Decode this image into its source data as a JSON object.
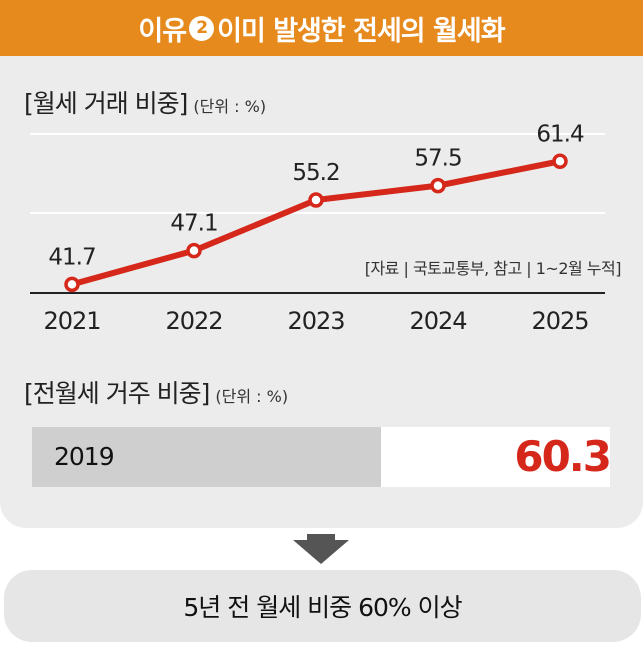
{
  "header": {
    "title_pre": "이유",
    "title_num": "2",
    "title_post": "이미 발생한 전세의 월세화"
  },
  "section1": {
    "title": "[월세 거래 비중]",
    "unit": "(단위 : %)"
  },
  "source": "[자료 | 국토교통부, 참고 | 1~2월 누적]",
  "section2": {
    "title": "[전월세 거주 비중]",
    "unit": "(단위 : %)"
  },
  "bar": {
    "label": "2019",
    "value_label": "60.3",
    "value": 60.3
  },
  "conclusion": "5년 전 월세 비중 60% 이상",
  "colors": {
    "accent": "#e68a1e",
    "line": "#d5281b",
    "panel": "#ececec"
  },
  "chart_data": {
    "type": "line",
    "categories": [
      "2021",
      "2022",
      "2023",
      "2024",
      "2025"
    ],
    "values": [
      41.7,
      47.1,
      55.2,
      57.5,
      61.4
    ],
    "labels": [
      "41.7",
      "47.1",
      "55.2",
      "57.5",
      "61.4"
    ],
    "title": "[월세 거래 비중]",
    "ylim": [
      30,
      70
    ],
    "grid": true
  }
}
